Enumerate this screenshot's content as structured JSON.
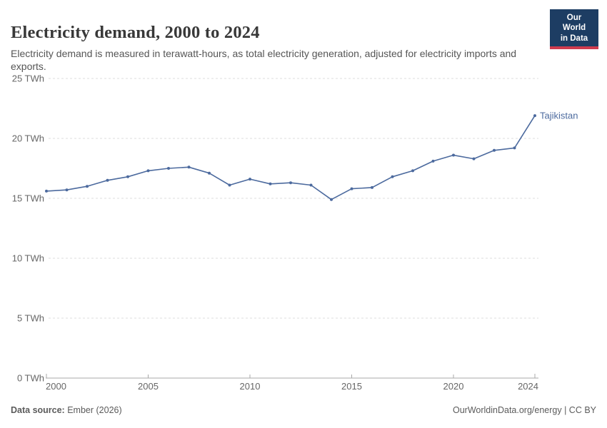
{
  "header": {
    "title": "Electricity demand, 2000 to 2024",
    "subtitle": "Electricity demand is measured in terawatt-hours, as total electricity generation, adjusted for electricity imports and exports.",
    "logo_line1": "Our World",
    "logo_line2": "in Data"
  },
  "chart_data": {
    "type": "line",
    "title": "Electricity demand, 2000 to 2024",
    "xlabel": "",
    "ylabel": "TWh",
    "x": [
      2000,
      2001,
      2002,
      2003,
      2004,
      2005,
      2006,
      2007,
      2008,
      2009,
      2010,
      2011,
      2012,
      2013,
      2014,
      2015,
      2016,
      2017,
      2018,
      2019,
      2020,
      2021,
      2022,
      2023,
      2024
    ],
    "series": [
      {
        "name": "Tajikistan",
        "values": [
          15.6,
          15.7,
          16.0,
          16.5,
          16.8,
          17.3,
          17.5,
          17.6,
          17.1,
          16.1,
          16.6,
          16.2,
          16.3,
          16.1,
          14.9,
          15.8,
          15.9,
          16.8,
          17.3,
          18.1,
          18.6,
          18.3,
          19.0,
          19.2,
          21.9
        ]
      }
    ],
    "ylim": [
      0,
      25
    ],
    "yticks": [
      0,
      5,
      10,
      15,
      20,
      25
    ],
    "ytick_suffix": " TWh",
    "xticks": [
      2000,
      2005,
      2010,
      2015,
      2020,
      2024
    ],
    "grid": "horizontal-dashed",
    "legend_position": "end-of-line-label"
  },
  "colors": {
    "line": "#4c6a9e",
    "entity_label": "#4c6a9e",
    "grid": "#dddddd",
    "axis": "#a8a8a8",
    "tick_label": "#666666",
    "title": "#383838",
    "subtitle": "#555555",
    "footer": "#5b5b5b",
    "logo_bg": "#1d3d63",
    "logo_stripe": "#cf3b4e"
  },
  "footer": {
    "datasource_label": "Data source:",
    "datasource_value": "Ember (2026)",
    "right_text": "OurWorldinData.org/energy | CC BY"
  }
}
